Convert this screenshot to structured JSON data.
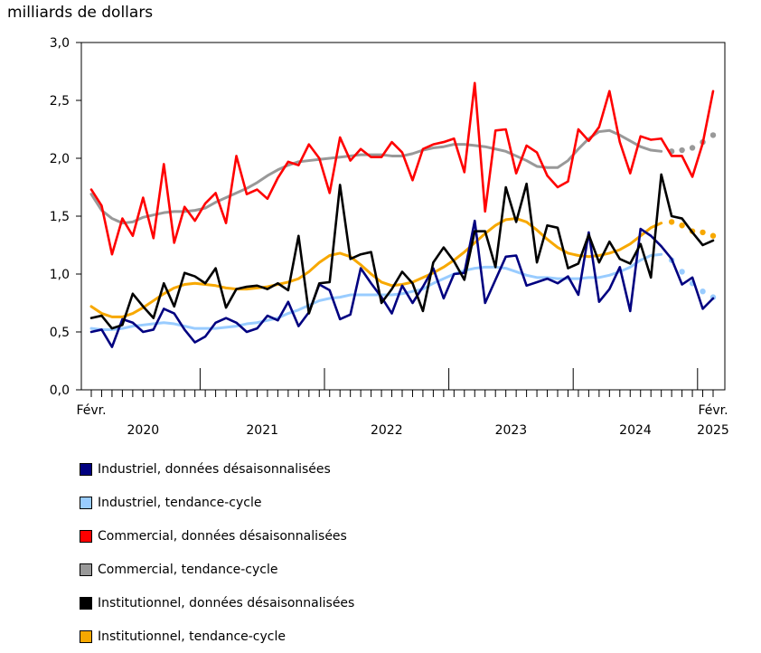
{
  "chart_data": {
    "type": "line",
    "ylabel": "milliards de dollars",
    "ylim": [
      0,
      3
    ],
    "y_ticks": [
      "0,0",
      "0,5",
      "1,0",
      "1,5",
      "2,0",
      "2,5",
      "3,0"
    ],
    "x_start_label": "Févr.",
    "x_end_label": "Févr.",
    "years": [
      "2020",
      "2021",
      "2022",
      "2023",
      "2024",
      "2025"
    ],
    "months_count": 61,
    "series": [
      {
        "name": "Industriel, données désaisonnalisées",
        "color": "#000080",
        "style": "solid",
        "values": [
          0.5,
          0.52,
          0.37,
          0.61,
          0.58,
          0.5,
          0.52,
          0.7,
          0.66,
          0.52,
          0.41,
          0.46,
          0.58,
          0.62,
          0.58,
          0.5,
          0.53,
          0.64,
          0.6,
          0.76,
          0.55,
          0.67,
          0.91,
          0.86,
          0.61,
          0.65,
          1.05,
          0.92,
          0.8,
          0.66,
          0.9,
          0.75,
          0.89,
          1.05,
          0.79,
          1.0,
          1.01,
          1.46,
          0.75,
          0.95,
          1.15,
          1.16,
          0.9,
          0.93,
          0.96,
          0.92,
          0.98,
          0.82,
          1.36,
          0.76,
          0.87,
          1.06,
          0.68,
          1.39,
          1.33,
          1.24,
          1.13,
          0.91,
          0.97,
          0.7,
          0.79
        ]
      },
      {
        "name": "Industriel, tendance-cycle",
        "color": "#99ccff",
        "style": "solid",
        "dotted_tail": 5,
        "values": [
          0.53,
          0.52,
          0.52,
          0.53,
          0.55,
          0.56,
          0.57,
          0.58,
          0.57,
          0.55,
          0.53,
          0.53,
          0.53,
          0.54,
          0.55,
          0.57,
          0.58,
          0.6,
          0.62,
          0.66,
          0.69,
          0.73,
          0.77,
          0.79,
          0.8,
          0.82,
          0.82,
          0.82,
          0.82,
          0.82,
          0.83,
          0.85,
          0.87,
          0.92,
          0.96,
          1.0,
          1.03,
          1.05,
          1.06,
          1.06,
          1.05,
          1.02,
          0.99,
          0.97,
          0.97,
          0.96,
          0.96,
          0.96,
          0.97,
          0.97,
          0.99,
          1.02,
          1.06,
          1.12,
          1.16,
          1.17,
          1.12,
          1.02,
          0.92,
          0.85,
          0.8
        ]
      },
      {
        "name": "Commercial, données désaisonnalisées",
        "color": "#ff0000",
        "style": "solid",
        "values": [
          1.73,
          1.59,
          1.17,
          1.48,
          1.33,
          1.66,
          1.31,
          1.95,
          1.27,
          1.58,
          1.46,
          1.61,
          1.7,
          1.44,
          2.02,
          1.69,
          1.73,
          1.65,
          1.83,
          1.97,
          1.94,
          2.12,
          2.0,
          1.7,
          2.18,
          1.98,
          2.08,
          2.01,
          2.01,
          2.14,
          2.05,
          1.81,
          2.08,
          2.12,
          2.14,
          2.17,
          1.88,
          2.65,
          1.54,
          2.24,
          2.25,
          1.87,
          2.11,
          2.05,
          1.85,
          1.75,
          1.8,
          2.25,
          2.15,
          2.27,
          2.58,
          2.14,
          1.87,
          2.19,
          2.16,
          2.17,
          2.02,
          2.02,
          1.84,
          2.13,
          2.58
        ]
      },
      {
        "name": "Commercial, tendance-cycle",
        "color": "#999999",
        "style": "solid",
        "dotted_tail": 5,
        "values": [
          1.69,
          1.55,
          1.48,
          1.44,
          1.45,
          1.49,
          1.51,
          1.53,
          1.54,
          1.54,
          1.55,
          1.57,
          1.62,
          1.66,
          1.7,
          1.74,
          1.79,
          1.85,
          1.9,
          1.94,
          1.97,
          1.98,
          1.99,
          2.0,
          2.01,
          2.02,
          2.03,
          2.03,
          2.03,
          2.02,
          2.02,
          2.04,
          2.07,
          2.09,
          2.1,
          2.12,
          2.12,
          2.11,
          2.1,
          2.08,
          2.06,
          2.02,
          1.98,
          1.93,
          1.92,
          1.92,
          1.98,
          2.08,
          2.17,
          2.23,
          2.24,
          2.2,
          2.15,
          2.1,
          2.07,
          2.06,
          2.06,
          2.07,
          2.09,
          2.14,
          2.2
        ]
      },
      {
        "name": "Institutionnel, données désaisonnalisées",
        "color": "#000000",
        "style": "solid",
        "values": [
          0.62,
          0.64,
          0.53,
          0.56,
          0.83,
          0.72,
          0.62,
          0.92,
          0.72,
          1.01,
          0.98,
          0.92,
          1.05,
          0.71,
          0.87,
          0.89,
          0.9,
          0.87,
          0.92,
          0.86,
          1.33,
          0.66,
          0.92,
          0.93,
          1.77,
          1.13,
          1.17,
          1.19,
          0.75,
          0.87,
          1.02,
          0.92,
          0.68,
          1.1,
          1.23,
          1.11,
          0.95,
          1.37,
          1.37,
          1.06,
          1.75,
          1.45,
          1.78,
          1.1,
          1.42,
          1.4,
          1.05,
          1.09,
          1.34,
          1.1,
          1.28,
          1.13,
          1.09,
          1.26,
          0.97,
          1.86,
          1.5,
          1.48,
          1.36,
          1.25,
          1.29
        ]
      },
      {
        "name": "Institutionnel, tendance-cycle",
        "color": "#f7a800",
        "style": "solid",
        "dotted_tail": 5,
        "values": [
          0.72,
          0.66,
          0.63,
          0.63,
          0.66,
          0.71,
          0.77,
          0.83,
          0.88,
          0.91,
          0.92,
          0.91,
          0.9,
          0.88,
          0.87,
          0.87,
          0.88,
          0.89,
          0.91,
          0.93,
          0.96,
          1.02,
          1.1,
          1.16,
          1.18,
          1.15,
          1.08,
          1.0,
          0.93,
          0.9,
          0.91,
          0.93,
          0.97,
          1.01,
          1.06,
          1.12,
          1.19,
          1.27,
          1.35,
          1.42,
          1.47,
          1.48,
          1.45,
          1.38,
          1.3,
          1.23,
          1.18,
          1.16,
          1.15,
          1.16,
          1.18,
          1.21,
          1.26,
          1.33,
          1.4,
          1.44,
          1.45,
          1.42,
          1.37,
          1.36,
          1.33
        ]
      }
    ]
  }
}
